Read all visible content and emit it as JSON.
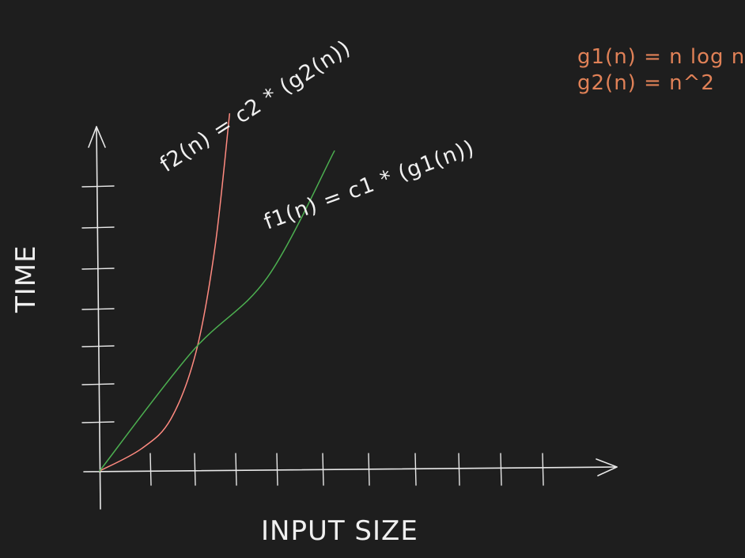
{
  "chart_data": {
    "type": "line",
    "xlabel": "INPUT SIZE",
    "ylabel": "TIME",
    "x_ticks": 11,
    "y_ticks": 8,
    "grid": false,
    "series": [
      {
        "name": "f2(n) = c2 * (g2(n))",
        "color": "#ff8a80",
        "points": [
          [
            0,
            0
          ],
          [
            1,
            0.6
          ],
          [
            1.7,
            1.4
          ],
          [
            2.3,
            3.2
          ],
          [
            2.75,
            6
          ],
          [
            3.1,
            9.6
          ]
        ]
      },
      {
        "name": "f1(n) = c1 * (g1(n))",
        "color": "#4caf50",
        "points": [
          [
            0,
            0
          ],
          [
            2.2,
            3.2
          ],
          [
            4,
            5.2
          ],
          [
            5.6,
            8.6
          ]
        ]
      }
    ],
    "annotations": [
      {
        "text": "g1(n) = n log n",
        "color": "#e08157"
      },
      {
        "text": "g2(n) = n^2",
        "color": "#e08157"
      }
    ]
  },
  "colors": {
    "background": "#1e1e1e",
    "axes": "#e8e8e8",
    "text": "#f0f0f0"
  }
}
